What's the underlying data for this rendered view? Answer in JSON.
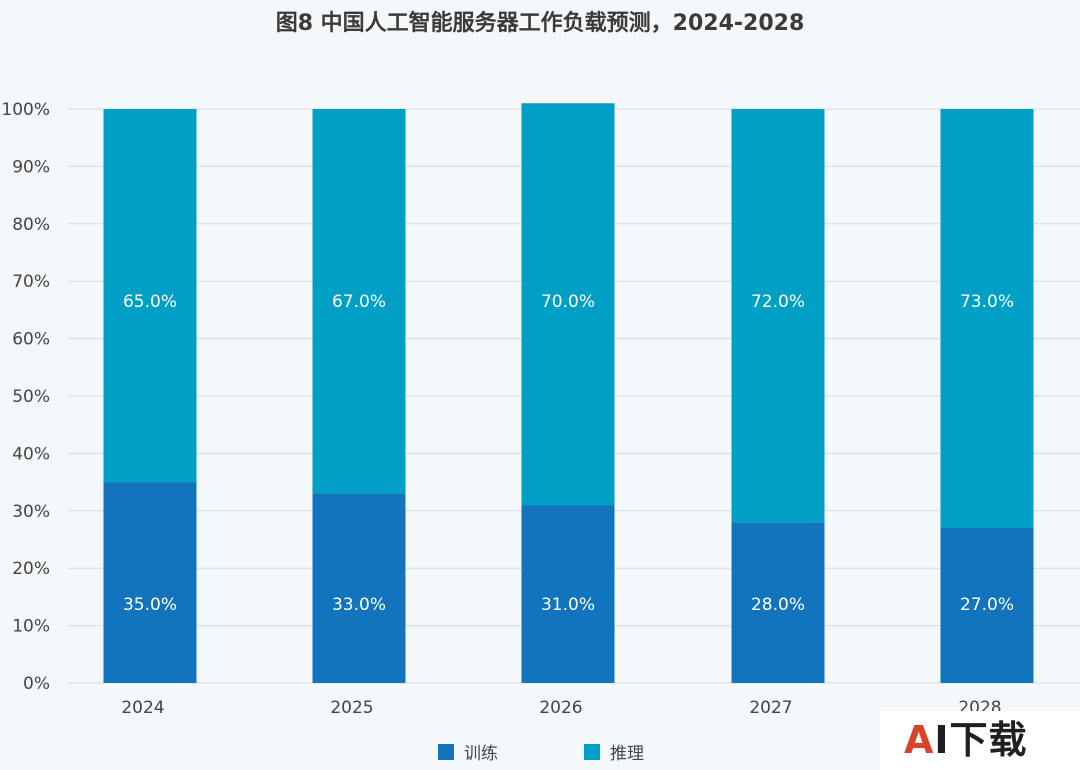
{
  "chart_data": {
    "type": "bar",
    "stacked": true,
    "title": "图8 中国人工智能服务器工作负载预测，2024-2028",
    "categories": [
      "2024",
      "2025",
      "2026",
      "2027",
      "2028"
    ],
    "series": [
      {
        "name": "训练",
        "color": "#1274bd",
        "values": [
          35.0,
          33.0,
          31.0,
          28.0,
          27.0
        ],
        "labels": [
          "35.0%",
          "33.0%",
          "31.0%",
          "28.0%",
          "27.0%"
        ]
      },
      {
        "name": "推理",
        "color": "#00a0c6",
        "values": [
          65.0,
          67.0,
          70.0,
          72.0,
          73.0
        ],
        "labels": [
          "65.0%",
          "67.0%",
          "70.0%",
          "72.0%",
          "73.0%"
        ]
      }
    ],
    "ylim": [
      0,
      100
    ],
    "yticks": [
      0,
      10,
      20,
      30,
      40,
      50,
      60,
      70,
      80,
      90,
      100
    ],
    "ytick_labels": [
      "0%",
      "10%",
      "20%",
      "30%",
      "40%",
      "50%",
      "60%",
      "70%",
      "80%",
      "90%",
      "100%"
    ],
    "xlabel": "",
    "ylabel": "",
    "grid": true,
    "legend_position": "bottom"
  },
  "watermark": {
    "a": "A",
    "rest": "I下载"
  }
}
